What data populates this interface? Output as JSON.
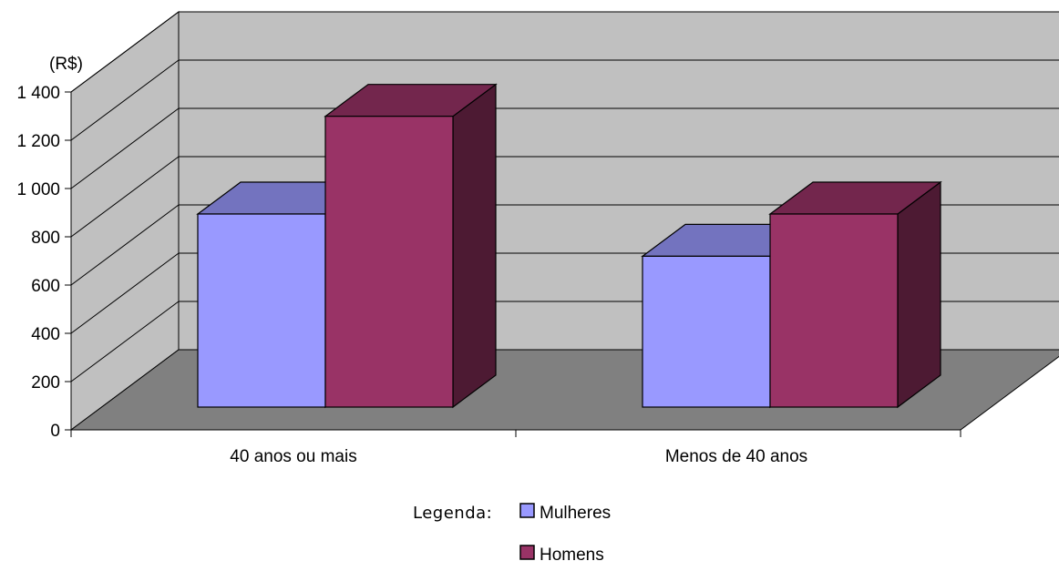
{
  "chart_data": {
    "type": "bar",
    "style": "3d-clustered-column",
    "ylabel": "(R$)",
    "ylim": [
      0,
      1400
    ],
    "yticks": [
      0,
      200,
      400,
      600,
      800,
      1000,
      1200,
      1400
    ],
    "ytick_labels": [
      "0",
      "200",
      "400",
      "600",
      "800",
      "1 000",
      "1 200",
      "1 400"
    ],
    "grid": true,
    "categories": [
      "40 anos ou mais",
      "Menos de 40 anos"
    ],
    "series": [
      {
        "name": "Mulheres",
        "values": [
          800,
          625
        ],
        "color": "#9999ff"
      },
      {
        "name": "Homens",
        "values": [
          1205,
          800
        ],
        "color": "#993366"
      }
    ],
    "legend": {
      "title": "Legenda:",
      "placement": "bottom-center"
    }
  },
  "colors": {
    "wall": "#c0c0c0",
    "floor": "#808080"
  }
}
